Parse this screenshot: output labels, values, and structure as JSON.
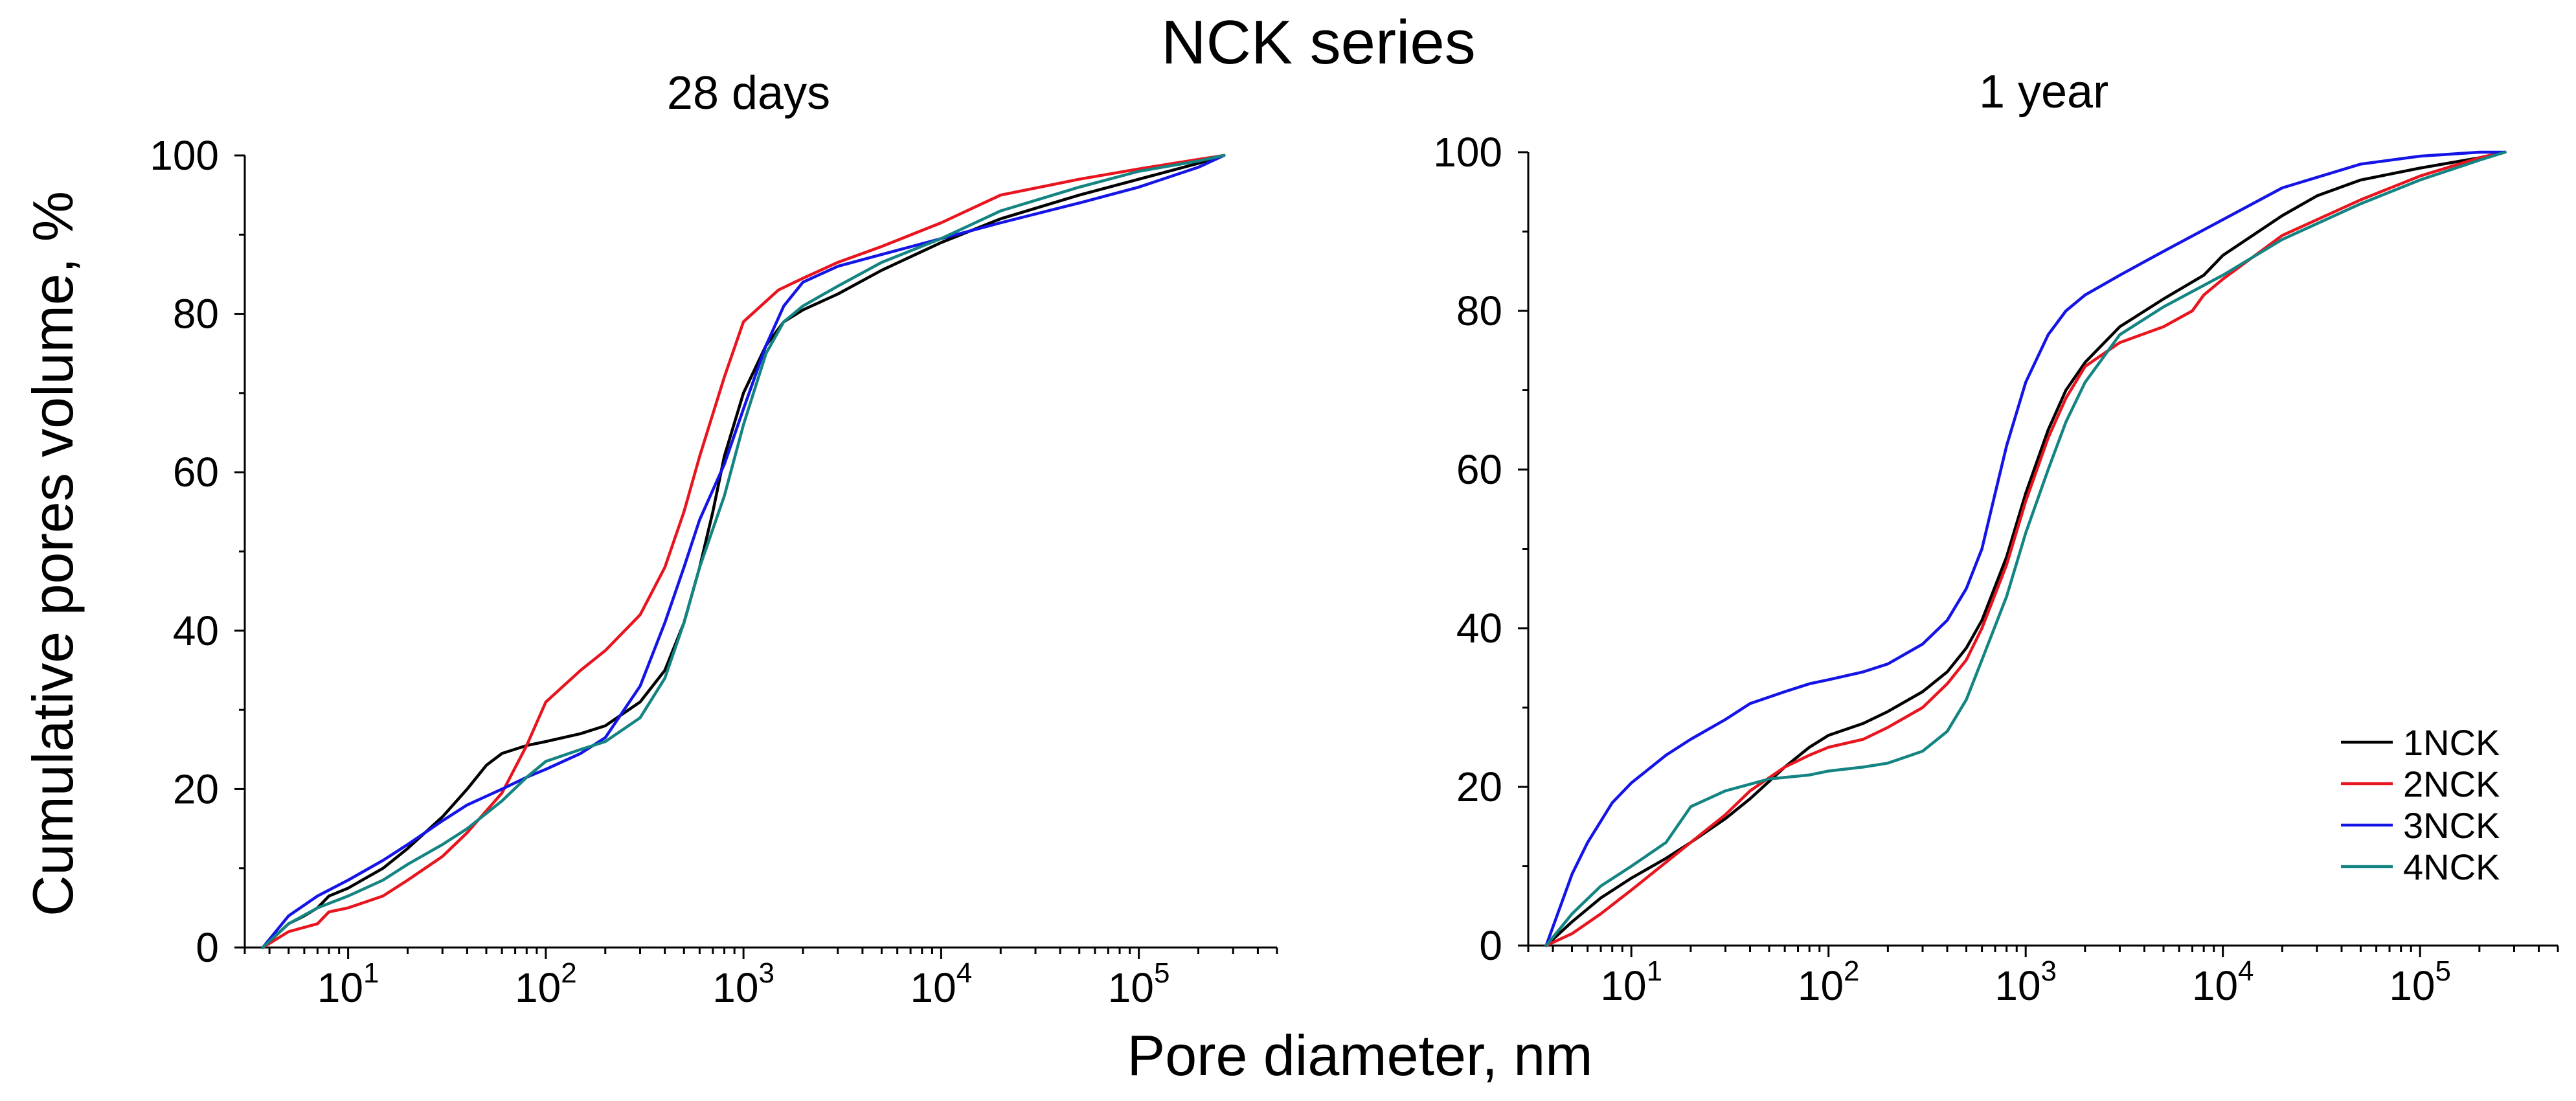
{
  "figure": {
    "suptitle": "NCK series",
    "ylabel": "Cumulative pores volume, %",
    "xlabel": "Pore diameter, nm"
  },
  "chart_data": [
    {
      "type": "line",
      "title": "28 days",
      "xscale": "log",
      "xlim": [
        3,
        500000
      ],
      "ylim": [
        0,
        100
      ],
      "yticks": [
        0,
        20,
        40,
        60,
        80,
        100
      ],
      "ytick_labels": [
        "0",
        "20",
        "40",
        "60",
        "80",
        "100"
      ],
      "xticks": [
        10,
        100,
        1000,
        10000,
        100000
      ],
      "xtick_labels": [
        {
          "base": "10",
          "exp": "1"
        },
        {
          "base": "10",
          "exp": "2"
        },
        {
          "base": "10",
          "exp": "3"
        },
        {
          "base": "10",
          "exp": "4"
        },
        {
          "base": "10",
          "exp": "5"
        }
      ],
      "grid": false,
      "legend": false,
      "series": [
        {
          "name": "1NCK",
          "color": "#000000",
          "x": [
            3.7,
            5,
            6,
            7,
            8,
            10,
            15,
            20,
            30,
            40,
            50,
            60,
            80,
            100,
            150,
            200,
            300,
            400,
            500,
            600,
            700,
            800,
            1000,
            1300,
            1600,
            2000,
            3000,
            5000,
            10000,
            20000,
            50000,
            100000,
            200000,
            270000
          ],
          "y": [
            0,
            3,
            4,
            5,
            6.5,
            7.5,
            10,
            12.5,
            16.5,
            20,
            23,
            24.5,
            25.5,
            26,
            27,
            28,
            31,
            35,
            41,
            48,
            55,
            62,
            70,
            76,
            79,
            80.5,
            82.5,
            85.5,
            89,
            92,
            95,
            97,
            99,
            100
          ]
        },
        {
          "name": "2NCK",
          "color": "#e8141e",
          "x": [
            3.7,
            5,
            7,
            8,
            10,
            15,
            20,
            30,
            40,
            60,
            80,
            100,
            150,
            200,
            300,
            400,
            500,
            600,
            800,
            1000,
            1500,
            2000,
            3000,
            5000,
            10000,
            20000,
            50000,
            100000,
            200000,
            270000
          ],
          "y": [
            0,
            2,
            3,
            4.5,
            5,
            6.5,
            8.5,
            11.5,
            14.5,
            19.5,
            25.5,
            31,
            35,
            37.5,
            42,
            48,
            55,
            62,
            72,
            79,
            83,
            84.5,
            86.5,
            88.5,
            91.5,
            95,
            97,
            98.3,
            99.5,
            100
          ]
        },
        {
          "name": "3NCK",
          "color": "#1414e6",
          "x": [
            3.7,
            5,
            7,
            10,
            15,
            20,
            30,
            40,
            60,
            80,
            100,
            150,
            200,
            300,
            400,
            500,
            600,
            800,
            1000,
            1300,
            1600,
            2000,
            3000,
            5000,
            10000,
            20000,
            50000,
            100000,
            200000,
            270000
          ],
          "y": [
            0,
            4,
            6.5,
            8.5,
            11,
            13,
            16,
            18,
            20,
            21.5,
            22.5,
            24.5,
            26.5,
            33,
            41,
            48,
            54,
            61,
            68,
            76,
            81,
            84,
            86,
            87.5,
            89.5,
            91.5,
            94,
            96,
            98.5,
            100
          ]
        },
        {
          "name": "4NCK",
          "color": "#138482",
          "x": [
            3.7,
            5,
            7,
            10,
            15,
            20,
            30,
            40,
            60,
            80,
            100,
            150,
            200,
            300,
            400,
            500,
            600,
            800,
            1000,
            1300,
            1600,
            2000,
            3000,
            5000,
            10000,
            20000,
            50000,
            100000,
            200000,
            270000
          ],
          "y": [
            0,
            3,
            5,
            6.5,
            8.5,
            10.5,
            13,
            15,
            18.5,
            21.5,
            23.5,
            25,
            26,
            29,
            34,
            41,
            48,
            57,
            66,
            75,
            79,
            81,
            83.5,
            86.5,
            89.5,
            93,
            96,
            98,
            99.3,
            100
          ]
        }
      ]
    },
    {
      "type": "line",
      "title": "1 year",
      "xscale": "log",
      "xlim": [
        3,
        500000
      ],
      "ylim": [
        0,
        100
      ],
      "yticks": [
        0,
        20,
        40,
        60,
        80,
        100
      ],
      "ytick_labels": [
        "0",
        "20",
        "40",
        "60",
        "80",
        "100"
      ],
      "xticks": [
        10,
        100,
        1000,
        10000,
        100000
      ],
      "xtick_labels": [
        {
          "base": "10",
          "exp": "1"
        },
        {
          "base": "10",
          "exp": "2"
        },
        {
          "base": "10",
          "exp": "3"
        },
        {
          "base": "10",
          "exp": "4"
        },
        {
          "base": "10",
          "exp": "5"
        }
      ],
      "grid": false,
      "legend": true,
      "legend_position": "right",
      "series": [
        {
          "name": "1NCK",
          "color": "#000000",
          "x": [
            3.7,
            5,
            7,
            10,
            15,
            20,
            30,
            40,
            60,
            80,
            100,
            150,
            200,
            300,
            400,
            500,
            600,
            800,
            1000,
            1300,
            1600,
            2000,
            3000,
            5000,
            8000,
            10000,
            20000,
            30000,
            50000,
            100000,
            200000,
            270000
          ],
          "y": [
            0,
            3,
            6,
            8.5,
            11,
            13,
            16,
            18.5,
            22.5,
            25,
            26.5,
            28,
            29.5,
            32,
            34.5,
            37.5,
            41,
            49,
            57,
            65,
            70,
            73.5,
            78,
            81.5,
            84.5,
            87,
            92,
            94.5,
            96.5,
            98,
            99.3,
            100
          ]
        },
        {
          "name": "2NCK",
          "color": "#e8141e",
          "x": [
            3.7,
            5,
            7,
            10,
            15,
            20,
            30,
            40,
            60,
            80,
            100,
            150,
            200,
            300,
            400,
            500,
            600,
            800,
            1000,
            1300,
            1600,
            2000,
            3000,
            5000,
            7000,
            8000,
            10000,
            20000,
            50000,
            100000,
            200000,
            270000
          ],
          "y": [
            0,
            1.5,
            4,
            7,
            10.5,
            13,
            16.5,
            19.5,
            22.5,
            24,
            25,
            26,
            27.5,
            30,
            33,
            36,
            40,
            48,
            56,
            64,
            69,
            73,
            76,
            78,
            80,
            82,
            84,
            89.5,
            94,
            97,
            99.3,
            100
          ]
        },
        {
          "name": "3NCK",
          "color": "#1414e6",
          "x": [
            3.7,
            5,
            6,
            8,
            10,
            15,
            20,
            30,
            40,
            60,
            80,
            100,
            150,
            200,
            300,
            400,
            500,
            600,
            700,
            800,
            1000,
            1300,
            1600,
            2000,
            3000,
            5000,
            10000,
            20000,
            50000,
            100000,
            200000,
            270000
          ],
          "y": [
            0,
            9,
            13,
            18,
            20.5,
            24,
            26,
            28.5,
            30.5,
            32,
            33,
            33.5,
            34.5,
            35.5,
            38,
            41,
            45,
            50,
            57,
            63,
            71,
            77,
            80,
            82,
            84.5,
            87.5,
            91.5,
            95.5,
            98.5,
            99.5,
            100,
            100
          ]
        },
        {
          "name": "4NCK",
          "color": "#138482",
          "x": [
            3.7,
            5,
            7,
            10,
            15,
            20,
            30,
            50,
            80,
            100,
            150,
            200,
            300,
            400,
            500,
            600,
            800,
            1000,
            1300,
            1600,
            2000,
            3000,
            5000,
            10000,
            20000,
            50000,
            100000,
            200000,
            270000
          ],
          "y": [
            0,
            4,
            7.5,
            10,
            13,
            17.5,
            19.5,
            21,
            21.5,
            22,
            22.5,
            23,
            24.5,
            27,
            31,
            36,
            44,
            52,
            60,
            66,
            71,
            77,
            80.5,
            84.5,
            89,
            93.5,
            96.5,
            99,
            100
          ]
        }
      ]
    }
  ]
}
